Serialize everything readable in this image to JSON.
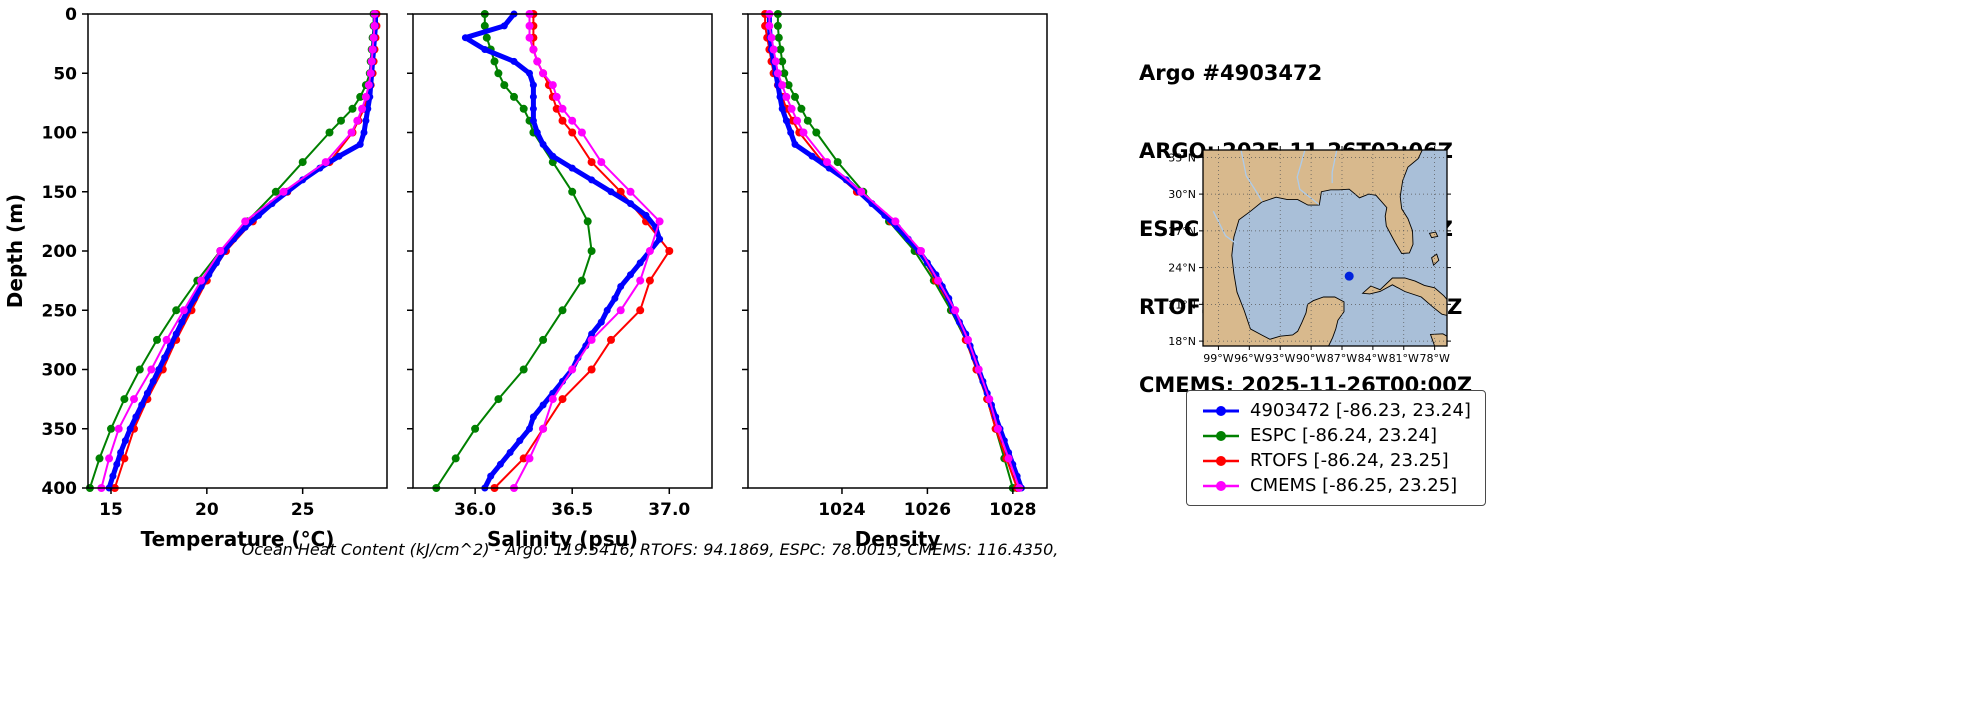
{
  "header": {
    "title": "Argo #4903472",
    "argo_line": "ARGO: 2025-11-26T02:06Z",
    "espc_line": "ESPC : 2025-11-26T03:00Z",
    "rtofs_line": "RTOFS: 2025-11-26T00:00Z",
    "cmems_line": "CMEMS: 2025-11-26T00:00Z"
  },
  "caption": "Ocean Heat Content (kJ/cm^2) - Argo: 119.5416,  RTOFS: 94.1869,  ESPC: 78.0015,  CMEMS: 116.4350,",
  "legend": {
    "items": [
      {
        "label": "4903472 [-86.23, 23.24]",
        "color": "#0000ff"
      },
      {
        "label": "ESPC [-86.24, 23.24]",
        "color": "#008000"
      },
      {
        "label": "RTOFS [-86.24, 23.25]",
        "color": "#ff0000"
      },
      {
        "label": "CMEMS [-86.25, 23.25]",
        "color": "#ff00ff"
      }
    ]
  },
  "map": {
    "extent": {
      "lon": [
        -100.5,
        -76.8
      ],
      "lat": [
        17.6,
        33.6
      ]
    },
    "water_color": "#a9bfd8",
    "land_color": "#d8b98d",
    "river_color": "#aecbe8",
    "marker": {
      "lon": -86.3,
      "lat": 23.3,
      "color": "#0022dd"
    },
    "lat_ticks": [
      {
        "value": 33,
        "label": "33°N"
      },
      {
        "value": 30,
        "label": "30°N"
      },
      {
        "value": 27,
        "label": "27°N"
      },
      {
        "value": 24,
        "label": "24°N"
      },
      {
        "value": 21,
        "label": "21°N"
      },
      {
        "value": 18,
        "label": "18°N"
      }
    ],
    "lon_ticks": [
      {
        "value": -99,
        "label": "99°W"
      },
      {
        "value": -96,
        "label": "96°W"
      },
      {
        "value": -93,
        "label": "93°W"
      },
      {
        "value": -90,
        "label": "90°W"
      },
      {
        "value": -87,
        "label": "87°W"
      },
      {
        "value": -84,
        "label": "84°W"
      },
      {
        "value": -81,
        "label": "81°W"
      },
      {
        "value": -78,
        "label": "78°W"
      }
    ]
  },
  "chart_data": {
    "type": "line",
    "orientation": "profile-depth-inverted",
    "depth_axis": {
      "label": "Depth (m)",
      "lim": [
        0,
        400
      ],
      "ticks": [
        0,
        50,
        100,
        150,
        200,
        250,
        300,
        350,
        400
      ]
    },
    "depths_fine": [
      0,
      10,
      20,
      30,
      40,
      50,
      60,
      70,
      80,
      90,
      100,
      110,
      120,
      130,
      140,
      150,
      160,
      170,
      180,
      190,
      200,
      210,
      220,
      230,
      240,
      250,
      260,
      270,
      280,
      290,
      300,
      310,
      320,
      330,
      340,
      350,
      360,
      370,
      380,
      390,
      400
    ],
    "depths_coarse": [
      0,
      10,
      20,
      30,
      40,
      50,
      60,
      70,
      80,
      90,
      100,
      125,
      150,
      175,
      200,
      225,
      250,
      275,
      300,
      325,
      350,
      375,
      400
    ],
    "charts": [
      {
        "key": "temperature",
        "xlabel": "Temperature (°C)",
        "xlim": [
          13.8,
          29.4
        ],
        "xticks": [
          15,
          20,
          25
        ],
        "xticklabels": [
          "15",
          "20",
          "25"
        ],
        "draw_order": [
          1,
          2,
          0,
          3
        ],
        "series": [
          {
            "name": "4903472",
            "color": "#0000ff",
            "lw": 5,
            "ms": 3.5,
            "marker": true,
            "depths": "fine",
            "values": [
              28.8,
              28.8,
              28.75,
              28.7,
              28.65,
              28.6,
              28.55,
              28.5,
              28.4,
              28.3,
              28.2,
              28.0,
              26.9,
              25.9,
              25.0,
              24.2,
              23.4,
              22.7,
              22.0,
              21.4,
              20.9,
              20.5,
              20.1,
              19.7,
              19.35,
              19.0,
              18.7,
              18.4,
              18.1,
              17.8,
              17.5,
              17.2,
              16.9,
              16.6,
              16.3,
              16.0,
              15.75,
              15.5,
              15.3,
              15.1,
              14.9
            ]
          },
          {
            "name": "ESPC",
            "color": "#008000",
            "lw": 2,
            "ms": 4,
            "marker": true,
            "depths": "coarse",
            "values": [
              28.7,
              28.7,
              28.65,
              28.6,
              28.55,
              28.5,
              28.3,
              28.0,
              27.6,
              27.0,
              26.4,
              25.0,
              23.6,
              22.1,
              20.7,
              19.5,
              18.4,
              17.4,
              16.5,
              15.7,
              15.0,
              14.4,
              13.9
            ]
          },
          {
            "name": "RTOFS",
            "color": "#ff0000",
            "lw": 2,
            "ms": 4,
            "marker": true,
            "depths": "coarse",
            "values": [
              28.85,
              28.85,
              28.8,
              28.75,
              28.7,
              28.65,
              28.55,
              28.4,
              28.2,
              27.9,
              27.6,
              26.4,
              24.2,
              22.4,
              21.0,
              20.0,
              19.2,
              18.4,
              17.7,
              16.9,
              16.2,
              15.7,
              15.2
            ]
          },
          {
            "name": "CMEMS",
            "color": "#ff00ff",
            "lw": 2,
            "ms": 4,
            "marker": true,
            "depths": "coarse",
            "values": [
              28.75,
              28.75,
              28.7,
              28.65,
              28.6,
              28.55,
              28.45,
              28.3,
              28.1,
              27.85,
              27.55,
              26.2,
              24.0,
              22.0,
              20.7,
              19.7,
              18.8,
              17.9,
              17.1,
              16.2,
              15.4,
              14.9,
              14.5
            ]
          }
        ]
      },
      {
        "key": "salinity",
        "xlabel": "Salinity (psu)",
        "xlim": [
          35.68,
          37.22
        ],
        "xticks": [
          36.0,
          36.5,
          37.0
        ],
        "xticklabels": [
          "36.0",
          "36.5",
          "37.0"
        ],
        "draw_order": [
          1,
          2,
          0,
          3
        ],
        "series": [
          {
            "name": "4903472",
            "color": "#0000ff",
            "lw": 5,
            "ms": 3.5,
            "marker": true,
            "depths": "fine",
            "values": [
              36.2,
              36.15,
              35.95,
              36.05,
              36.2,
              36.28,
              36.3,
              36.3,
              36.3,
              36.3,
              36.32,
              36.35,
              36.4,
              36.5,
              36.6,
              36.7,
              36.8,
              36.88,
              36.93,
              36.95,
              36.9,
              36.85,
              36.8,
              36.75,
              36.72,
              36.68,
              36.65,
              36.6,
              36.57,
              36.53,
              36.5,
              36.45,
              36.4,
              36.35,
              36.3,
              36.28,
              36.23,
              36.18,
              36.13,
              36.08,
              36.05
            ]
          },
          {
            "name": "ESPC",
            "color": "#008000",
            "lw": 2,
            "ms": 4,
            "marker": true,
            "depths": "coarse",
            "values": [
              36.05,
              36.05,
              36.06,
              36.08,
              36.1,
              36.12,
              36.15,
              36.2,
              36.25,
              36.28,
              36.3,
              36.4,
              36.5,
              36.58,
              36.6,
              36.55,
              36.45,
              36.35,
              36.25,
              36.12,
              36.0,
              35.9,
              35.8
            ]
          },
          {
            "name": "RTOFS",
            "color": "#ff0000",
            "lw": 2,
            "ms": 4,
            "marker": true,
            "depths": "coarse",
            "values": [
              36.3,
              36.3,
              36.3,
              36.3,
              36.32,
              36.35,
              36.38,
              36.4,
              36.42,
              36.45,
              36.5,
              36.6,
              36.75,
              36.88,
              37.0,
              36.9,
              36.85,
              36.7,
              36.6,
              36.45,
              36.35,
              36.25,
              36.1
            ]
          },
          {
            "name": "CMEMS",
            "color": "#ff00ff",
            "lw": 2,
            "ms": 4,
            "marker": true,
            "depths": "coarse",
            "values": [
              36.28,
              36.28,
              36.28,
              36.3,
              36.32,
              36.35,
              36.4,
              36.42,
              36.45,
              36.5,
              36.55,
              36.65,
              36.8,
              36.95,
              36.9,
              36.85,
              36.75,
              36.6,
              36.5,
              36.4,
              36.35,
              36.28,
              36.2
            ]
          }
        ]
      },
      {
        "key": "density",
        "xlabel": "Density",
        "xlim": [
          1021.8,
          1028.8
        ],
        "xticks": [
          1024,
          1026,
          1028
        ],
        "xticklabels": [
          "1024",
          "1026",
          "1028"
        ],
        "draw_order": [
          1,
          2,
          0,
          3
        ],
        "series": [
          {
            "name": "4903472",
            "color": "#0000ff",
            "lw": 5,
            "ms": 3.5,
            "marker": true,
            "depths": "fine",
            "values": [
              1022.3,
              1022.3,
              1022.32,
              1022.35,
              1022.4,
              1022.45,
              1022.5,
              1022.55,
              1022.6,
              1022.7,
              1022.8,
              1022.9,
              1023.3,
              1023.7,
              1024.1,
              1024.4,
              1024.7,
              1025.0,
              1025.3,
              1025.55,
              1025.8,
              1026.0,
              1026.2,
              1026.35,
              1026.5,
              1026.6,
              1026.75,
              1026.9,
              1027.0,
              1027.1,
              1027.2,
              1027.3,
              1027.4,
              1027.5,
              1027.6,
              1027.7,
              1027.8,
              1027.9,
              1028.0,
              1028.1,
              1028.2
            ]
          },
          {
            "name": "ESPC",
            "color": "#008000",
            "lw": 2,
            "ms": 4,
            "marker": true,
            "depths": "coarse",
            "values": [
              1022.5,
              1022.5,
              1022.52,
              1022.56,
              1022.6,
              1022.65,
              1022.75,
              1022.9,
              1023.05,
              1023.2,
              1023.4,
              1023.9,
              1024.5,
              1025.1,
              1025.7,
              1026.15,
              1026.55,
              1026.9,
              1027.15,
              1027.4,
              1027.6,
              1027.8,
              1028.0
            ]
          },
          {
            "name": "RTOFS",
            "color": "#ff0000",
            "lw": 2,
            "ms": 4,
            "marker": true,
            "depths": "coarse",
            "values": [
              1022.2,
              1022.2,
              1022.25,
              1022.3,
              1022.35,
              1022.4,
              1022.5,
              1022.6,
              1022.7,
              1022.85,
              1023.0,
              1023.55,
              1024.35,
              1025.15,
              1025.8,
              1026.2,
              1026.6,
              1026.9,
              1027.15,
              1027.4,
              1027.6,
              1027.85,
              1028.1
            ]
          },
          {
            "name": "CMEMS",
            "color": "#ff00ff",
            "lw": 2,
            "ms": 4,
            "marker": true,
            "depths": "coarse",
            "values": [
              1022.3,
              1022.3,
              1022.35,
              1022.4,
              1022.45,
              1022.5,
              1022.6,
              1022.7,
              1022.82,
              1022.95,
              1023.1,
              1023.65,
              1024.45,
              1025.25,
              1025.85,
              1026.25,
              1026.65,
              1026.95,
              1027.2,
              1027.45,
              1027.65,
              1027.9,
              1028.15
            ]
          }
        ]
      }
    ]
  }
}
